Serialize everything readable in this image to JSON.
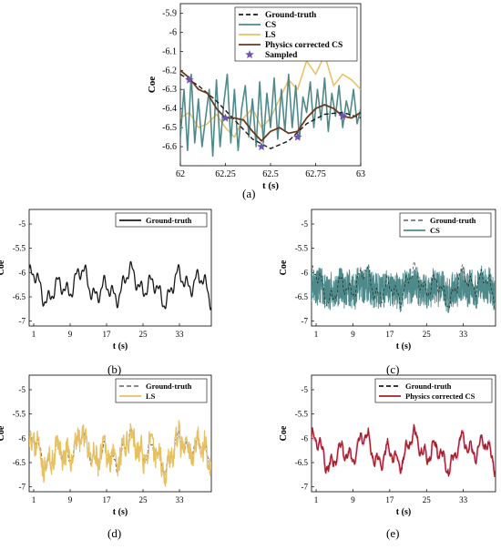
{
  "captions": [
    "(a)",
    "(b)",
    "(c)",
    "(d)",
    "(e)"
  ],
  "colors": {
    "ground_truth": "#1a1a1a",
    "cs": "#4f8a8b",
    "ls": "#e8c060",
    "physics": "#6b3a1e",
    "physics_red": "#a12424",
    "sampled": "#6a55b0"
  },
  "chart_data": [
    {
      "panel": "a",
      "type": "line",
      "xlabel": "t (s)",
      "ylabel": "Coe",
      "xlim": [
        62,
        63
      ],
      "ylim": [
        -6.7,
        -5.85
      ],
      "y_reversed": true,
      "xticks": [
        "62",
        "62.25",
        "62.5",
        "62.75",
        "63"
      ],
      "yticks": [
        "-5.9",
        "-6",
        "-6.1",
        "-6.2",
        "-6.3",
        "-6.4",
        "-6.5",
        "-6.6"
      ],
      "legend": [
        "Ground-truth",
        "CS",
        "LS",
        "Physics corrected CS",
        "Sampled"
      ],
      "legend_position": "top-right",
      "series": [
        {
          "name": "Ground-truth",
          "style": "dashed",
          "x": [
            62.0,
            62.1,
            62.2,
            62.3,
            62.4,
            62.5,
            62.6,
            62.7,
            62.8,
            62.9,
            63.0
          ],
          "values": [
            -6.22,
            -6.28,
            -6.36,
            -6.46,
            -6.56,
            -6.61,
            -6.57,
            -6.48,
            -6.43,
            -6.42,
            -6.45
          ]
        },
        {
          "name": "CS",
          "style": "solid",
          "x": [
            62.0,
            62.02,
            62.04,
            62.06,
            62.08,
            62.1,
            62.12,
            62.14,
            62.16,
            62.18,
            62.2,
            62.22,
            62.24,
            62.26,
            62.28,
            62.3,
            62.32,
            62.34,
            62.36,
            62.38,
            62.4,
            62.42,
            62.44,
            62.46,
            62.48,
            62.5,
            62.52,
            62.54,
            62.56,
            62.58,
            62.6,
            62.62,
            62.64,
            62.66,
            62.68,
            62.7,
            62.72,
            62.74,
            62.76,
            62.78,
            62.8,
            62.82,
            62.84,
            62.86,
            62.88,
            62.9,
            62.92,
            62.94,
            62.96,
            62.98,
            63.0
          ],
          "values": [
            -6.55,
            -6.3,
            -6.62,
            -6.22,
            -6.58,
            -6.35,
            -6.6,
            -6.45,
            -6.3,
            -6.65,
            -6.25,
            -6.6,
            -6.38,
            -6.22,
            -6.58,
            -6.3,
            -6.62,
            -6.4,
            -6.28,
            -6.55,
            -6.35,
            -6.6,
            -6.26,
            -6.58,
            -6.32,
            -6.5,
            -6.24,
            -6.56,
            -6.3,
            -6.52,
            -6.22,
            -6.5,
            -6.28,
            -6.56,
            -6.34,
            -6.42,
            -6.26,
            -6.5,
            -6.3,
            -6.46,
            -6.24,
            -6.52,
            -6.32,
            -6.44,
            -6.28,
            -6.5,
            -6.36,
            -6.44,
            -6.3,
            -6.48,
            -6.4
          ]
        },
        {
          "name": "LS",
          "style": "solid",
          "x": [
            62.0,
            62.05,
            62.1,
            62.15,
            62.2,
            62.25,
            62.3,
            62.35,
            62.4,
            62.45,
            62.5,
            62.55,
            62.6,
            62.65,
            62.7,
            62.75,
            62.8,
            62.85,
            62.9,
            62.95,
            63.0
          ],
          "values": [
            -6.45,
            -6.42,
            -6.5,
            -6.48,
            -6.43,
            -6.5,
            -6.55,
            -6.45,
            -6.4,
            -6.5,
            -6.45,
            -6.35,
            -6.25,
            -6.3,
            -6.15,
            -6.22,
            -6.12,
            -6.28,
            -6.22,
            -6.25,
            -6.3
          ]
        },
        {
          "name": "Physics corrected CS",
          "style": "solid",
          "x": [
            62.0,
            62.05,
            62.1,
            62.15,
            62.2,
            62.25,
            62.3,
            62.35,
            62.4,
            62.45,
            62.5,
            62.55,
            62.6,
            62.65,
            62.7,
            62.75,
            62.8,
            62.85,
            62.9,
            62.95,
            63.0
          ],
          "values": [
            -6.2,
            -6.24,
            -6.3,
            -6.32,
            -6.4,
            -6.45,
            -6.45,
            -6.46,
            -6.52,
            -6.57,
            -6.52,
            -6.5,
            -6.53,
            -6.52,
            -6.45,
            -6.4,
            -6.38,
            -6.4,
            -6.44,
            -6.45,
            -6.42
          ]
        },
        {
          "name": "Sampled",
          "style": "marker-star",
          "x": [
            62.05,
            62.25,
            62.45,
            62.65,
            62.9
          ],
          "values": [
            -6.25,
            -6.45,
            -6.6,
            -6.55,
            -6.44
          ]
        }
      ]
    },
    {
      "panel": "b",
      "type": "line",
      "xlabel": "t (s)",
      "ylabel": "Coe",
      "xlim": [
        0,
        40
      ],
      "ylim": [
        -7.1,
        -4.7
      ],
      "y_reversed": true,
      "xticks": [
        "1",
        "9",
        "17",
        "25",
        "33"
      ],
      "yticks": [
        "-5",
        "-5.5",
        "-6",
        "-6.5",
        "-7"
      ],
      "legend": [
        "Ground-truth"
      ],
      "legend_position": "top-right",
      "series": [
        {
          "name": "Ground-truth",
          "style": "solid"
        }
      ]
    },
    {
      "panel": "c",
      "type": "line",
      "xlabel": "t (s)",
      "ylabel": "Coe",
      "xlim": [
        0,
        40
      ],
      "ylim": [
        -7.1,
        -4.7
      ],
      "y_reversed": true,
      "xticks": [
        "1",
        "9",
        "17",
        "25",
        "33"
      ],
      "yticks": [
        "-5",
        "-5.5",
        "-6",
        "-6.5",
        "-7"
      ],
      "legend": [
        "Ground-truth",
        "CS"
      ],
      "legend_position": "top-right",
      "series": [
        {
          "name": "Ground-truth",
          "style": "dashed"
        },
        {
          "name": "CS",
          "style": "solid"
        }
      ]
    },
    {
      "panel": "d",
      "type": "line",
      "xlabel": "t (s)",
      "ylabel": "Coe",
      "xlim": [
        0,
        40
      ],
      "ylim": [
        -7.1,
        -4.7
      ],
      "y_reversed": true,
      "xticks": [
        "1",
        "9",
        "17",
        "25",
        "33"
      ],
      "yticks": [
        "-5",
        "-5.5",
        "-6",
        "-6.5",
        "-7"
      ],
      "legend": [
        "Ground-truth",
        "LS"
      ],
      "legend_position": "top-right",
      "series": [
        {
          "name": "Ground-truth",
          "style": "dashed"
        },
        {
          "name": "LS",
          "style": "solid"
        }
      ]
    },
    {
      "panel": "e",
      "type": "line",
      "xlabel": "t (s)",
      "ylabel": "Coe",
      "xlim": [
        0,
        40
      ],
      "ylim": [
        -7.1,
        -4.7
      ],
      "y_reversed": true,
      "xticks": [
        "1",
        "9",
        "17",
        "25",
        "33"
      ],
      "yticks": [
        "-5",
        "-5.5",
        "-6",
        "-6.5",
        "-7"
      ],
      "legend": [
        "Ground-truth",
        "Physics corrected CS"
      ],
      "legend_position": "top-right",
      "series": [
        {
          "name": "Ground-truth",
          "style": "dashed"
        },
        {
          "name": "Physics corrected CS",
          "style": "solid"
        }
      ]
    }
  ]
}
